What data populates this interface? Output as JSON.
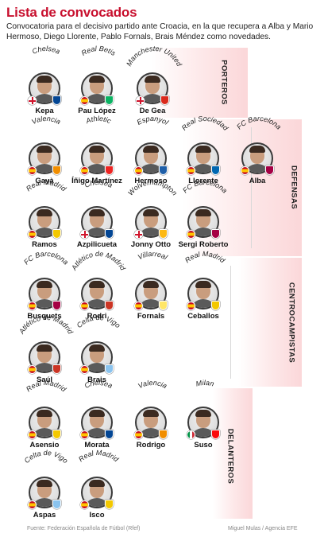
{
  "title": "Lista de convocados",
  "subtitle": "Convocatoria para el decisivo partido ante Croacia, en la que recupera a Alba y Mario Hermoso, Diego Llorente, Pablo Fornals, Brais Méndez como novedades.",
  "sections": {
    "porteros": "PORTEROS",
    "defensas": "DEFENSAS",
    "centrocampistas": "CENTROCAMPISTAS",
    "delanteros": "DELANTEROS"
  },
  "players": [
    {
      "id": "kepa",
      "name": "Kepa",
      "club": "Chelsea",
      "flag": "en",
      "crest": "#034694"
    },
    {
      "id": "pau-lopez",
      "name": "Pau López",
      "club": "Real Betis",
      "flag": "es",
      "crest": "#0bb363"
    },
    {
      "id": "de-gea",
      "name": "De Gea",
      "club": "Manchester United",
      "flag": "en",
      "crest": "#da291c"
    },
    {
      "id": "gaya",
      "name": "Gayà",
      "club": "Valencia",
      "flag": "es",
      "crest": "#f18e00"
    },
    {
      "id": "inigo-martinez",
      "name": "Íñigo Martínez",
      "club": "Athletic",
      "flag": "es",
      "crest": "#ee2523"
    },
    {
      "id": "hermoso",
      "name": "Hermoso",
      "club": "Espanyol",
      "flag": "es",
      "crest": "#1f5fa8"
    },
    {
      "id": "llorente",
      "name": "Llorente",
      "club": "Real Sociedad",
      "flag": "es",
      "crest": "#0067b1"
    },
    {
      "id": "alba",
      "name": "Alba",
      "club": "FC Barcelona",
      "flag": "es",
      "crest": "#a50044"
    },
    {
      "id": "ramos",
      "name": "Ramos",
      "club": "Real Madrid",
      "flag": "es",
      "crest": "#f3c800"
    },
    {
      "id": "azpilicueta",
      "name": "Azpilicueta",
      "club": "Chelsea",
      "flag": "en",
      "crest": "#034694"
    },
    {
      "id": "jonny-otto",
      "name": "Jonny Otto",
      "club": "Wolverhampton",
      "flag": "en",
      "crest": "#fdb913"
    },
    {
      "id": "sergi-roberto",
      "name": "Sergi Roberto",
      "club": "FC Barcelona",
      "flag": "es",
      "crest": "#a50044"
    },
    {
      "id": "busquets",
      "name": "Busquets",
      "club": "FC Barcelona",
      "flag": "es",
      "crest": "#a50044"
    },
    {
      "id": "rodri",
      "name": "Rodri",
      "club": "Atlético de Madrid",
      "flag": "es",
      "crest": "#cb3524"
    },
    {
      "id": "fornals",
      "name": "Fornals",
      "club": "Villarreal",
      "flag": "es",
      "crest": "#ffe667"
    },
    {
      "id": "ceballos",
      "name": "Ceballos",
      "club": "Real Madrid",
      "flag": "es",
      "crest": "#f3c800"
    },
    {
      "id": "saul",
      "name": "Saúl",
      "club": "Atlético de Madrid",
      "flag": "es",
      "crest": "#cb3524"
    },
    {
      "id": "brais",
      "name": "Brais",
      "club": "Celta de Vigo",
      "flag": "es",
      "crest": "#8ac3ee"
    },
    {
      "id": "asensio",
      "name": "Asensio",
      "club": "Real Madrid",
      "flag": "es",
      "crest": "#f3c800"
    },
    {
      "id": "morata",
      "name": "Morata",
      "club": "Chelsea",
      "flag": "es",
      "crest": "#034694"
    },
    {
      "id": "rodrigo",
      "name": "Rodrigo",
      "club": "Valencia",
      "flag": "es",
      "crest": "#f18e00"
    },
    {
      "id": "suso",
      "name": "Suso",
      "club": "Milan",
      "flag": "it",
      "crest": "#fb090b"
    },
    {
      "id": "aspas",
      "name": "Aspas",
      "club": "Celta de Vigo",
      "flag": "es",
      "crest": "#8ac3ee"
    },
    {
      "id": "isco",
      "name": "Isco",
      "club": "Real Madrid",
      "flag": "es",
      "crest": "#f3c800"
    }
  ],
  "footer": {
    "source": "Fuente: Federación Española de Fútbol (Rfef)",
    "credit": "Miguel Mulas / Agencia EFE"
  }
}
